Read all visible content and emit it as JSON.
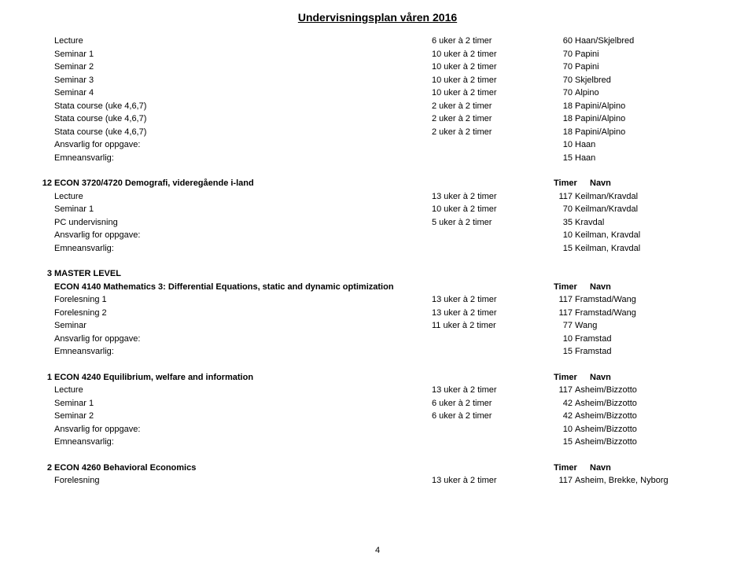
{
  "title": "Undervisningsplan våren 2016",
  "pageNumber": "4",
  "timerLabel": "Timer",
  "navnLabel": "Navn",
  "blocks": [
    {
      "num": "",
      "heading": "",
      "rows": [
        {
          "label": "Lecture",
          "time": "6 uker à 2 timer",
          "hours": "60",
          "name": "Haan/Skjelbred"
        },
        {
          "label": "Seminar 1",
          "time": "10 uker à 2 timer",
          "hours": "70",
          "name": "Papini"
        },
        {
          "label": "Seminar 2",
          "time": "10 uker à 2 timer",
          "hours": "70",
          "name": "Papini"
        },
        {
          "label": "Seminar 3",
          "time": "10 uker à 2 timer",
          "hours": "70",
          "name": "Skjelbred"
        },
        {
          "label": "Seminar 4",
          "time": "10 uker à 2 timer",
          "hours": "70",
          "name": "Alpino"
        },
        {
          "label": "Stata course (uke 4,6,7)",
          "time": "2 uker à 2 timer",
          "hours": "18",
          "name": "Papini/Alpino"
        },
        {
          "label": "Stata course (uke 4,6,7)",
          "time": "2 uker à 2 timer",
          "hours": "18",
          "name": "Papini/Alpino"
        },
        {
          "label": "Stata course (uke 4,6,7)",
          "time": "2 uker à 2 timer",
          "hours": "18",
          "name": "Papini/Alpino"
        },
        {
          "label": "Ansvarlig for oppgave:",
          "time": "",
          "hours": "10",
          "name": "Haan"
        },
        {
          "label": "Emneansvarlig:",
          "time": "",
          "hours": "15",
          "name": "Haan"
        }
      ]
    },
    {
      "num": "12",
      "heading": "ECON 3720/4720 Demografi, videregående i-land",
      "rows": [
        {
          "label": "Lecture",
          "time": "13 uker à 2 timer",
          "hours": "117",
          "name": "Keilman/Kravdal"
        },
        {
          "label": "Seminar 1",
          "time": "10 uker à 2 timer",
          "hours": "70",
          "name": "Keilman/Kravdal"
        },
        {
          "label": "PC undervisning",
          "time": "5 uker à 2 timer",
          "hours": "35",
          "name": "Kravdal"
        },
        {
          "label": "Ansvarlig for oppgave:",
          "time": "",
          "hours": "10",
          "name": "Keilman, Kravdal"
        },
        {
          "label": "Emneansvarlig:",
          "time": "",
          "hours": "15",
          "name": "Keilman, Kravdal"
        }
      ]
    },
    {
      "num": "3",
      "heading": "MASTER LEVEL",
      "subheading": "ECON 4140 Mathematics 3: Differential Equations, static and dynamic optimization",
      "rows": [
        {
          "label": "Forelesning 1",
          "time": "13 uker à 2 timer",
          "hours": "117",
          "name": "Framstad/Wang"
        },
        {
          "label": "Forelesning 2",
          "time": "13 uker à 2 timer",
          "hours": "117",
          "name": "Framstad/Wang"
        },
        {
          "label": "Seminar",
          "time": "11 uker à 2 timer",
          "hours": "77",
          "name": "Wang"
        },
        {
          "label": "Ansvarlig for oppgave:",
          "time": "",
          "hours": "10",
          "name": "Framstad"
        },
        {
          "label": "Emneansvarlig:",
          "time": "",
          "hours": "15",
          "name": "Framstad"
        }
      ]
    },
    {
      "num": "1",
      "heading": "ECON 4240 Equilibrium, welfare and information",
      "rows": [
        {
          "label": "Lecture",
          "time": "13 uker à 2 timer",
          "hours": "117",
          "name": "Asheim/Bizzotto"
        },
        {
          "label": "Seminar 1",
          "time": "6 uker à 2 timer",
          "hours": "42",
          "name": "Asheim/Bizzotto"
        },
        {
          "label": "Seminar 2",
          "time": "6 uker à 2 timer",
          "hours": "42",
          "name": "Asheim/Bizzotto"
        },
        {
          "label": "Ansvarlig for oppgave:",
          "time": "",
          "hours": "10",
          "name": "Asheim/Bizzotto"
        },
        {
          "label": "Emneansvarlig:",
          "time": "",
          "hours": "15",
          "name": "Asheim/Bizzotto"
        }
      ]
    },
    {
      "num": "2",
      "heading": "ECON 4260 Behavioral Economics",
      "rows": [
        {
          "label": "Forelesning",
          "time": "13 uker à 2 timer",
          "hours": "117",
          "name": "Asheim, Brekke, Nyborg"
        }
      ]
    }
  ]
}
